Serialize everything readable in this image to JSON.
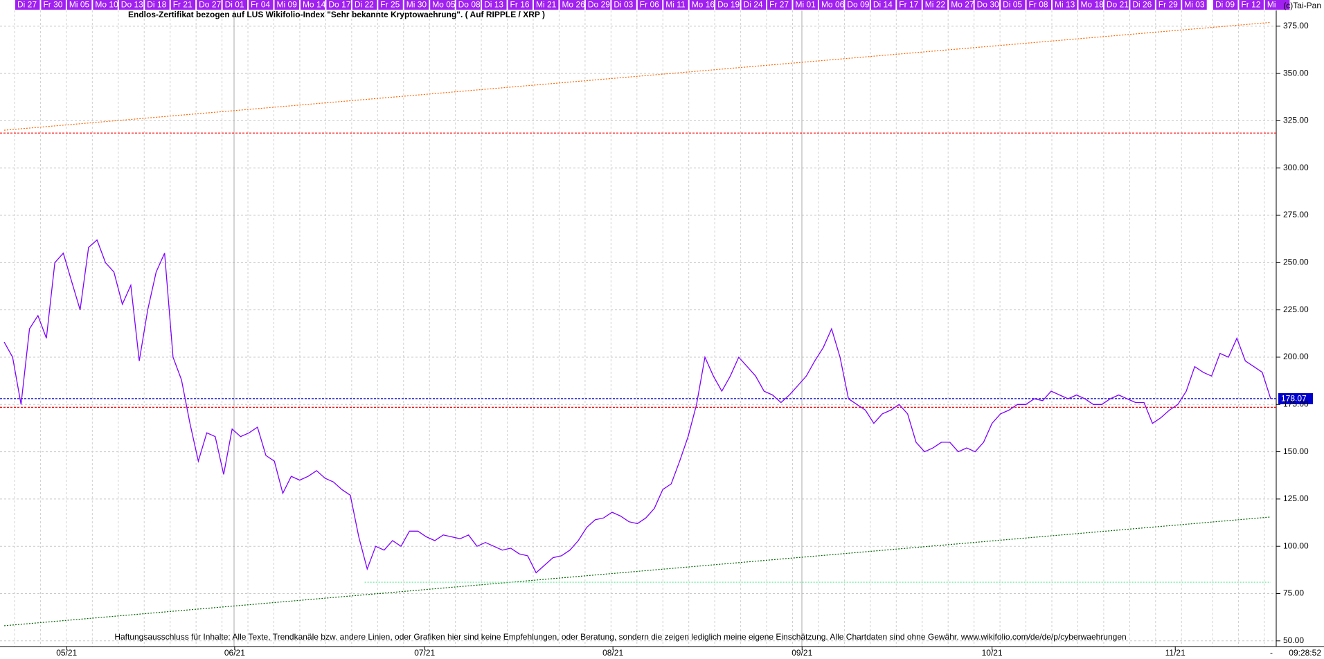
{
  "chart_data": {
    "type": "line",
    "title": "Endlos-Zertifikat bezogen auf LUS Wikifolio-Index \"Sehr bekannte Kryptowaehrung\". ( Auf RIPPLE / XRP )",
    "copyright": "(c)Tai-Pan",
    "disclaimer": "Haftungsausschluss für Inhalte: Alle Texte, Trendkanäle bzw. andere Linien, oder Grafiken hier sind keine Empfehlungen, oder Beratung, sondern die zeigen lediglich meine eigene Einschätzung. Alle Chartdaten sind ohne Gewähr.  www.wikifolio.com/de/de/p/cyberwaehrungen",
    "time": "09:28:52",
    "axis_marker": "-",
    "top_dates": [
      "Di 27",
      "Fr 30",
      "Mi 05",
      "Mo 10",
      "Do 13",
      "Di 18",
      "Fr 21",
      "Do 27",
      "Di 01",
      "Fr 04",
      "Mi 09",
      "Mo 14",
      "Do 17",
      "Di 22",
      "Fr 25",
      "Mi 30",
      "Mo 05",
      "Do 08",
      "Di 13",
      "Fr 16",
      "Mi 21",
      "Mo 26",
      "Do 29",
      "Di 03",
      "Fr 06",
      "Mi 11",
      "Mo 16",
      "Do 19",
      "Di 24",
      "Fr 27",
      "Mi 01",
      "Mo 06",
      "Do 09",
      "Di 14",
      "Fr 17",
      "Mi 22",
      "Mo 27",
      "Do 30",
      "Di 05",
      "Fr 08",
      "Mi 13",
      "Mo 18",
      "Do 21",
      "Di 26",
      "Fr 29",
      "Mi 03",
      "Di 09",
      "Fr 12",
      "Mi"
    ],
    "series": [
      {
        "color": "#7f00ff",
        "values": [
          208,
          200,
          175,
          215,
          222,
          210,
          250,
          255,
          240,
          225,
          258,
          262,
          250,
          245,
          228,
          238,
          198,
          225,
          245,
          255,
          200,
          188,
          165,
          145,
          160,
          158,
          138,
          162,
          158,
          160,
          163,
          148,
          145,
          128,
          137,
          135,
          137,
          140,
          136,
          134,
          130,
          127,
          105,
          88,
          100,
          98,
          103,
          100,
          108,
          108,
          105,
          103,
          106,
          105,
          104,
          106,
          100,
          102,
          100,
          98,
          99,
          96,
          95,
          86,
          90,
          94,
          95,
          98,
          103,
          110,
          114,
          115,
          118,
          116,
          113,
          112,
          115,
          120,
          130,
          133,
          145,
          158,
          175,
          200,
          190,
          182,
          190,
          200,
          195,
          190,
          182,
          180,
          176,
          180,
          185,
          190,
          198,
          205,
          215,
          200,
          178,
          175,
          172,
          165,
          170,
          172,
          175,
          170,
          155,
          150,
          152,
          155,
          155,
          150,
          152,
          150,
          155,
          165,
          170,
          172,
          175,
          175,
          178,
          177,
          182,
          180,
          178,
          180,
          178,
          175,
          175,
          178,
          180,
          178,
          176,
          176,
          165,
          168,
          172,
          175,
          182,
          195,
          192,
          190,
          202,
          200,
          210,
          198,
          195,
          192,
          178
        ]
      }
    ],
    "xlim": [
      0,
      150
    ],
    "xticks": [
      {
        "value": 7.4,
        "label": "05/21"
      },
      {
        "value": 27.3,
        "label": "06/21"
      },
      {
        "value": 49.8,
        "label": "07/21"
      },
      {
        "value": 72.1,
        "label": "08/21"
      },
      {
        "value": 94.5,
        "label": "09/21"
      },
      {
        "value": 117,
        "label": "10/21"
      },
      {
        "value": 138.7,
        "label": "11/21"
      }
    ],
    "ylim": [
      47,
      383.5
    ],
    "yticks": [
      {
        "value": 50,
        "label": "50.00"
      },
      {
        "value": 75,
        "label": "75.00"
      },
      {
        "value": 100,
        "label": "100.00"
      },
      {
        "value": 125,
        "label": "125.00"
      },
      {
        "value": 150,
        "label": "150.00"
      },
      {
        "value": 175,
        "label": "175.00"
      },
      {
        "value": 200,
        "label": "200.00"
      },
      {
        "value": 225,
        "label": "225.00"
      },
      {
        "value": 250,
        "label": "250.00"
      },
      {
        "value": 275,
        "label": "275.00"
      },
      {
        "value": 300,
        "label": "300.00"
      },
      {
        "value": 325,
        "label": "325.00"
      },
      {
        "value": 350,
        "label": "350.00"
      },
      {
        "value": 375,
        "label": "375.00"
      }
    ],
    "grid": true,
    "hlines": [
      {
        "value": 178.07,
        "color": "#0000cc",
        "labeled": true
      },
      {
        "value": 173.5,
        "color": "#ff0000",
        "labeled": false
      },
      {
        "value": 318.5,
        "color": "#ff0000",
        "labeled": false
      }
    ],
    "trendlines": [
      {
        "color": "#ff6600",
        "x": [
          0,
          150
        ],
        "values": [
          320,
          377
        ]
      },
      {
        "color": "#006600",
        "x": [
          0,
          150
        ],
        "values": [
          58,
          115.5
        ]
      },
      {
        "color": "#66ee99",
        "x": [
          42.7,
          150
        ],
        "values": [
          81,
          81
        ]
      }
    ]
  }
}
